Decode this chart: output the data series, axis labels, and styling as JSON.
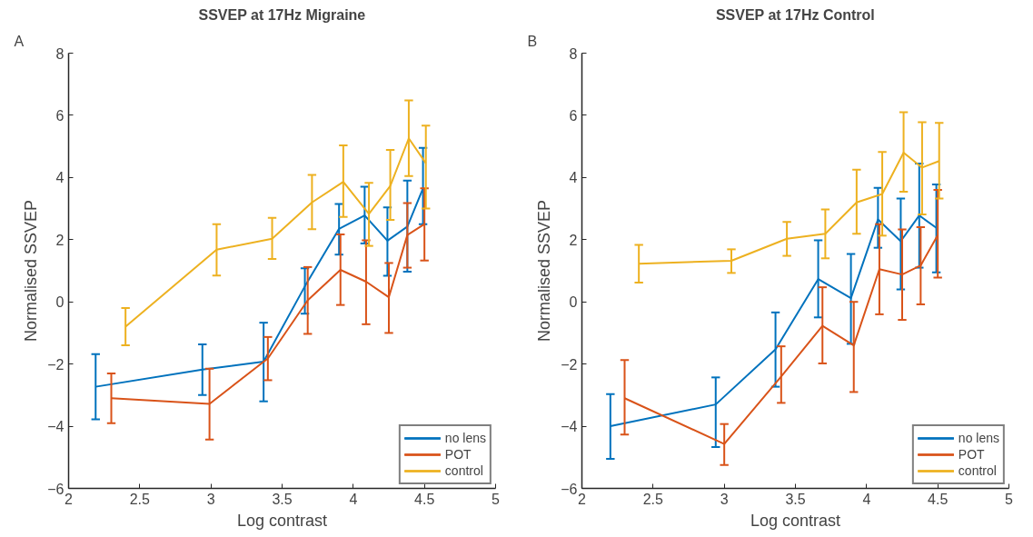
{
  "chart_data": [
    {
      "type": "line",
      "title": "SSVEP at 17Hz Migraine",
      "xlabel": "Log contrast",
      "ylabel": "Normalised SSVEP",
      "annotations": [
        "A"
      ],
      "xlim": [
        2,
        5
      ],
      "ylim": [
        -6,
        8
      ],
      "xticks": [
        2,
        2.5,
        3,
        3.5,
        4,
        4.5,
        5
      ],
      "yticks": [
        -6,
        -4,
        -2,
        0,
        2,
        4,
        6,
        8
      ],
      "grid": false,
      "legend": "bottom right",
      "series": [
        {
          "name": "no lens",
          "color": "#0072bd",
          "x": [
            2.19,
            2.94,
            3.37,
            3.66,
            3.9,
            4.08,
            4.24,
            4.38,
            4.49
          ],
          "values": [
            -2.73,
            -2.18,
            -1.92,
            0.5,
            2.35,
            2.78,
            1.97,
            2.42,
            3.65
          ],
          "errors": [
            [
              -3.78,
              -1.68
            ],
            [
              -3.0,
              -1.37
            ],
            [
              -3.2,
              -0.67
            ],
            [
              -0.38,
              1.08
            ],
            [
              1.52,
              3.15
            ],
            [
              1.88,
              3.7
            ],
            [
              0.84,
              3.04
            ],
            [
              0.97,
              3.9
            ],
            [
              2.5,
              4.95
            ]
          ]
        },
        {
          "name": "POT",
          "color": "#d95319",
          "x": [
            2.3,
            2.99,
            3.4,
            3.68,
            3.91,
            4.09,
            4.25,
            4.38,
            4.5
          ],
          "values": [
            -3.1,
            -3.28,
            -1.82,
            0.05,
            1.03,
            0.65,
            0.15,
            2.15,
            2.5
          ],
          "errors": [
            [
              -3.9,
              -2.3
            ],
            [
              -4.43,
              -2.15
            ],
            [
              -2.52,
              -1.13
            ],
            [
              -1.03,
              1.12
            ],
            [
              -0.1,
              2.17
            ],
            [
              -0.72,
              1.98
            ],
            [
              -1.0,
              1.25
            ],
            [
              1.1,
              3.18
            ],
            [
              1.33,
              3.65
            ]
          ]
        },
        {
          "name": "control",
          "color": "#edb120",
          "x": [
            2.4,
            3.04,
            3.43,
            3.71,
            3.93,
            4.11,
            4.26,
            4.39,
            4.51
          ],
          "values": [
            -0.8,
            1.68,
            2.03,
            3.2,
            3.86,
            2.83,
            3.73,
            5.26,
            4.46
          ],
          "errors": [
            [
              -1.4,
              -0.2
            ],
            [
              0.85,
              2.5
            ],
            [
              1.38,
              2.7
            ],
            [
              2.34,
              4.08
            ],
            [
              2.73,
              5.03
            ],
            [
              1.8,
              3.83
            ],
            [
              2.64,
              4.89
            ],
            [
              4.05,
              6.48
            ],
            [
              3.0,
              5.67
            ]
          ]
        }
      ]
    },
    {
      "type": "line",
      "title": "SSVEP at 17Hz Control",
      "xlabel": "Log contrast",
      "ylabel": "Normalised SSVEP",
      "annotations": [
        "B"
      ],
      "xlim": [
        2,
        5
      ],
      "ylim": [
        -6,
        8
      ],
      "xticks": [
        2,
        2.5,
        3,
        3.5,
        4,
        4.5,
        5
      ],
      "yticks": [
        -6,
        -4,
        -2,
        0,
        2,
        4,
        6,
        8
      ],
      "grid": false,
      "legend": "bottom right",
      "series": [
        {
          "name": "no lens",
          "color": "#0072bd",
          "x": [
            2.2,
            2.94,
            3.36,
            3.66,
            3.89,
            4.08,
            4.24,
            4.37,
            4.49
          ],
          "values": [
            -4.0,
            -3.3,
            -1.53,
            0.73,
            0.12,
            2.65,
            1.95,
            2.78,
            2.38
          ],
          "errors": [
            [
              -5.05,
              -2.97
            ],
            [
              -4.67,
              -2.43
            ],
            [
              -2.73,
              -0.34
            ],
            [
              -0.5,
              1.98
            ],
            [
              -1.35,
              1.54
            ],
            [
              1.74,
              3.67
            ],
            [
              0.4,
              3.32
            ],
            [
              1.1,
              4.45
            ],
            [
              0.95,
              3.78
            ]
          ]
        },
        {
          "name": "POT",
          "color": "#d95319",
          "x": [
            2.3,
            3.0,
            3.4,
            3.69,
            3.91,
            4.09,
            4.25,
            4.38,
            4.5
          ],
          "values": [
            -3.1,
            -4.57,
            -2.4,
            -0.77,
            -1.4,
            1.05,
            0.88,
            1.17,
            2.15
          ],
          "errors": [
            [
              -4.27,
              -1.87
            ],
            [
              -5.25,
              -3.93
            ],
            [
              -3.25,
              -1.43
            ],
            [
              -1.98,
              0.47
            ],
            [
              -2.9,
              0.0
            ],
            [
              -0.4,
              2.5
            ],
            [
              -0.58,
              2.33
            ],
            [
              -0.08,
              2.4
            ],
            [
              0.78,
              3.6
            ]
          ]
        },
        {
          "name": "control",
          "color": "#edb120",
          "x": [
            2.4,
            3.05,
            3.44,
            3.71,
            3.93,
            4.11,
            4.26,
            4.39,
            4.51
          ],
          "values": [
            1.23,
            1.32,
            2.03,
            2.19,
            3.2,
            3.47,
            4.8,
            4.32,
            4.53
          ],
          "errors": [
            [
              0.62,
              1.83
            ],
            [
              0.93,
              1.69
            ],
            [
              1.48,
              2.57
            ],
            [
              1.4,
              2.97
            ],
            [
              2.19,
              4.25
            ],
            [
              2.13,
              4.82
            ],
            [
              3.54,
              6.1
            ],
            [
              2.81,
              5.78
            ],
            [
              3.32,
              5.76
            ]
          ]
        }
      ]
    }
  ]
}
